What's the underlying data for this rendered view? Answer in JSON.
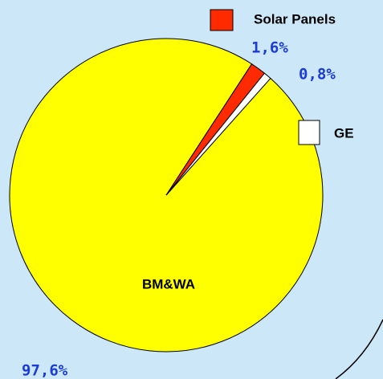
{
  "chart_data": {
    "type": "pie",
    "categories": [
      "BM&WA",
      "Solar Panels",
      "GE"
    ],
    "values": [
      97.6,
      1.6,
      0.8
    ],
    "value_labels": [
      "97,6%",
      "1,6%",
      "0,8%"
    ],
    "colors": [
      "#ffff00",
      "#ff2a00",
      "#ffffff"
    ]
  }
}
